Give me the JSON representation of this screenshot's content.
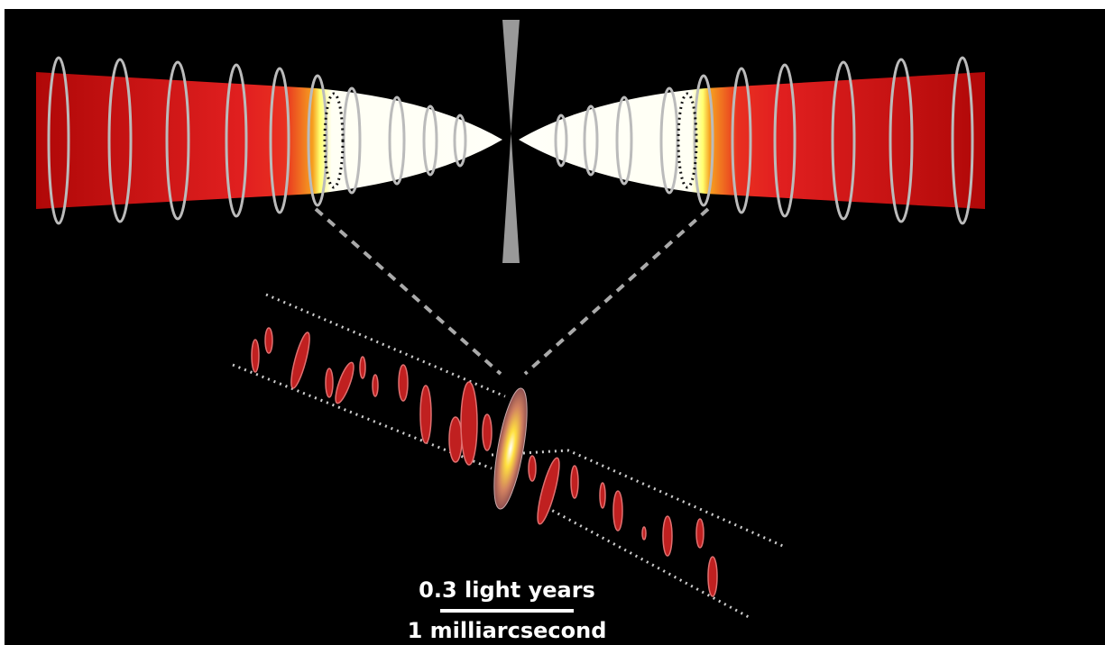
{
  "scale_bar": {
    "top_label": "0.3 light years",
    "bottom_label": "1 milliarcsecond"
  }
}
